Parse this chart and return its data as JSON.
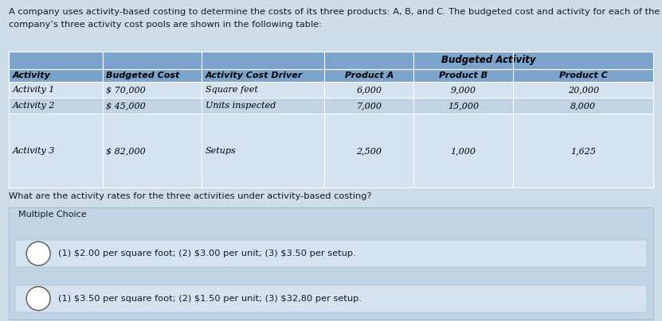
{
  "header_text_line1": "A company uses activity-based costing to determine the costs of its three products: A, B, and C. The budgeted cost and activity for each of the",
  "header_text_line2": "company’s three activity cost pools are shown in the following table:",
  "col_headers": [
    "Activity",
    "Budgeted Cost",
    "Activity Cost Driver",
    "Product A",
    "Product B",
    "Product C"
  ],
  "table_data": [
    [
      "Activity 1",
      "$ 70,000",
      "Square feet",
      "6,000",
      "9,000",
      "20,000"
    ],
    [
      "Activity 2",
      "$ 45,000",
      "Units inspected",
      "7,000",
      "15,000",
      "8,000"
    ],
    [
      "Activity 3",
      "$ 82,000",
      "Setups",
      "2,500",
      "1,000",
      "1,625"
    ]
  ],
  "budgeted_activity_label": "Budgeted Activity",
  "question": "What are the activity rates for the three activities under activity-based costing?",
  "section_label": "Multiple Choice",
  "choices": [
    "(1) $2.00 per square foot; (2) $3.00 per unit; (3) $3.50 per setup.",
    "(1) $3.50 per square foot; (2) $1.50 per unit; (3) $32,80 per setup."
  ],
  "bg_color": "#cfdde9",
  "table_bg": "#b8cfe0",
  "table_header_bg": "#7ba3cc",
  "table_data_bg_even": "#d4e3ef",
  "table_data_bg_odd": "#c0d4e5",
  "mc_section_bg": "#c0d4e6",
  "mc_choice_bg": "#d4e3ef",
  "white": "#ffffff",
  "font_color": "#1a1a1a",
  "header_fontsize": 8.2,
  "table_header_fontsize": 8.0,
  "table_data_fontsize": 8.0,
  "question_fontsize": 8.2,
  "section_fontsize": 8.0,
  "choice_fontsize": 8.2
}
